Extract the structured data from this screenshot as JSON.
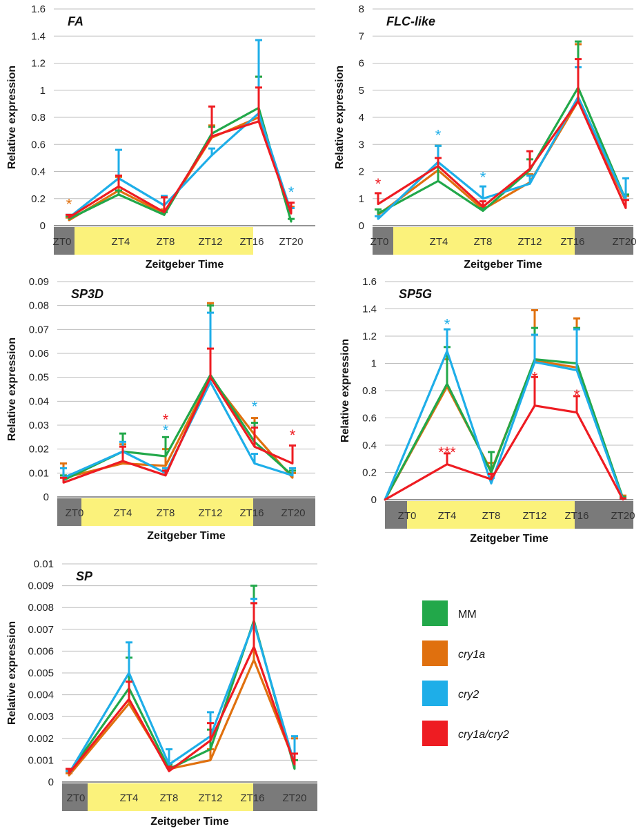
{
  "colors": {
    "MM": "#22a84a",
    "cry1a": "#e0700e",
    "cry2": "#1eaee8",
    "cry1a/cry2": "#ee1c22",
    "day": "#fbf27b",
    "night": "#7a7a7a",
    "grid": "#bdbdbd"
  },
  "legend": [
    {
      "label": "MM",
      "series": "MM"
    },
    {
      "label": "cry1a",
      "series": "cry1a"
    },
    {
      "label": "cry2",
      "series": "cry2"
    },
    {
      "label": "cry1a/cry2",
      "series": "cry1a/cry2"
    }
  ],
  "chart_data": [
    {
      "type": "line",
      "title": "FA",
      "xlabel": "Zeitgeber Time",
      "ylabel": "Relative expression",
      "ylim": [
        0,
        1.6
      ],
      "yticks": [
        "0",
        "0.2",
        "0.4",
        "0.6",
        "0.8",
        "1",
        "1.2",
        "1.4",
        "1.6"
      ],
      "categories": [
        "ZT0",
        "ZT4",
        "ZT8",
        "ZT12",
        "ZT16",
        "ZT20"
      ],
      "series": [
        {
          "name": "MM",
          "values": [
            0.05,
            0.23,
            0.08,
            0.68,
            0.87,
            0.03
          ],
          "errors": [
            0.02,
            0.03,
            0.02,
            0.05,
            0.23,
            0.02
          ]
        },
        {
          "name": "cry1a",
          "values": [
            0.04,
            0.26,
            0.09,
            0.65,
            0.8,
            0.1
          ],
          "errors": [
            0.02,
            0.1,
            0.03,
            0.09,
            0.3,
            0.04
          ]
        },
        {
          "name": "cry2",
          "values": [
            0.06,
            0.35,
            0.15,
            0.52,
            0.83,
            0.1
          ],
          "errors": [
            0.02,
            0.21,
            0.07,
            0.05,
            0.54,
            0.03
          ]
        },
        {
          "name": "cry1a/cry2",
          "values": [
            0.06,
            0.29,
            0.1,
            0.66,
            0.77,
            0.09
          ],
          "errors": [
            0.02,
            0.08,
            0.11,
            0.22,
            0.25,
            0.08
          ]
        }
      ],
      "annotations": [
        {
          "text": "*",
          "series": "cry1a",
          "x": "ZT0",
          "y": 0.17
        },
        {
          "text": "*",
          "series": "cry2",
          "x": "ZT20",
          "y": 0.26
        }
      ]
    },
    {
      "type": "line",
      "title": "FLC-like",
      "xlabel": "Zeitgeber Time",
      "ylabel": "Relative expression",
      "ylim": [
        0,
        8
      ],
      "yticks": [
        "0",
        "1",
        "2",
        "3",
        "4",
        "5",
        "6",
        "7",
        "8"
      ],
      "categories": [
        "ZT0",
        "ZT4",
        "ZT8",
        "ZT12",
        "ZT16",
        "ZT20"
      ],
      "series": [
        {
          "name": "MM",
          "values": [
            0.45,
            1.65,
            0.55,
            2.05,
            5.1,
            0.95
          ],
          "errors": [
            0.15,
            1.3,
            0.1,
            0.4,
            1.7,
            0.2
          ]
        },
        {
          "name": "cry1a",
          "values": [
            0.4,
            2.05,
            0.6,
            1.6,
            4.6,
            0.9
          ],
          "errors": [
            0.2,
            0.9,
            0.1,
            0.3,
            2.1,
            0.2
          ]
        },
        {
          "name": "cry2",
          "values": [
            0.25,
            2.35,
            1.0,
            1.55,
            4.75,
            0.95
          ],
          "errors": [
            0.1,
            0.6,
            0.45,
            0.3,
            1.1,
            0.8
          ]
        },
        {
          "name": "cry1a/cry2",
          "values": [
            0.8,
            2.2,
            0.7,
            2.1,
            4.6,
            0.65
          ],
          "errors": [
            0.4,
            0.3,
            0.2,
            0.65,
            1.55,
            0.3
          ]
        }
      ],
      "annotations": [
        {
          "text": "*",
          "series": "cry1a/cry2",
          "x": "ZT0",
          "y": 1.6
        },
        {
          "text": "*",
          "series": "cry2",
          "x": "ZT4",
          "y": 3.4
        },
        {
          "text": "*",
          "series": "cry2",
          "x": "ZT8",
          "y": 1.85
        }
      ]
    },
    {
      "type": "line",
      "title": "SP3D",
      "xlabel": "Zeitgeber Time",
      "ylabel": "Relative expression",
      "ylim": [
        0,
        0.09
      ],
      "yticks": [
        "0",
        "0.01",
        "0.02",
        "0.03",
        "0.04",
        "0.05",
        "0.06",
        "0.07",
        "0.08",
        "0.09"
      ],
      "categories": [
        "ZT0",
        "ZT4",
        "ZT8",
        "ZT12",
        "ZT16",
        "ZT20"
      ],
      "series": [
        {
          "name": "MM",
          "values": [
            0.007,
            0.019,
            0.017,
            0.051,
            0.023,
            0.009
          ],
          "errors": [
            0.002,
            0.0075,
            0.008,
            0.029,
            0.008,
            0.002
          ]
        },
        {
          "name": "cry1a",
          "values": [
            0.008,
            0.014,
            0.013,
            0.05,
            0.026,
            0.008
          ],
          "errors": [
            0.006,
            0.008,
            0.007,
            0.031,
            0.007,
            0.002
          ]
        },
        {
          "name": "cry2",
          "values": [
            0.008,
            0.019,
            0.01,
            0.048,
            0.014,
            0.009
          ],
          "errors": [
            0.004,
            0.004,
            0.002,
            0.029,
            0.004,
            0.003
          ]
        },
        {
          "name": "cry1a/cry2",
          "values": [
            0.006,
            0.015,
            0.009,
            0.05,
            0.021,
            0.014
          ],
          "errors": [
            0.002,
            0.006,
            0.002,
            0.012,
            0.008,
            0.0075
          ]
        }
      ],
      "annotations": [
        {
          "text": "*",
          "series": "cry1a/cry2",
          "x": "ZT8",
          "y": 0.033
        },
        {
          "text": "*",
          "series": "cry2",
          "x": "ZT8",
          "y": 0.0285
        },
        {
          "text": "*",
          "series": "cry2",
          "x": "ZT16",
          "y": 0.0385
        },
        {
          "text": "*",
          "series": "cry1a/cry2",
          "x": "ZT20",
          "y": 0.0265
        }
      ]
    },
    {
      "type": "line",
      "title": "SP5G",
      "xlabel": "Zeitgeber Time",
      "ylabel": "Relative expression",
      "ylim": [
        0,
        1.6
      ],
      "yticks": [
        "0",
        "0.2",
        "0.4",
        "0.6",
        "0.8",
        "1",
        "1.2",
        "1.4",
        "1.6"
      ],
      "categories": [
        "ZT0",
        "ZT4",
        "ZT8",
        "ZT12",
        "ZT16",
        "ZT20"
      ],
      "series": [
        {
          "name": "MM",
          "values": [
            0.0,
            0.85,
            0.2,
            1.03,
            1.0,
            0.01
          ],
          "errors": [
            0.0,
            0.27,
            0.15,
            0.23,
            0.26,
            0.01
          ]
        },
        {
          "name": "cry1a",
          "values": [
            0.0,
            0.83,
            0.21,
            1.02,
            0.97,
            0.01
          ],
          "errors": [
            0.0,
            0.2,
            0.06,
            0.37,
            0.36,
            0.02
          ]
        },
        {
          "name": "cry2",
          "values": [
            0.0,
            1.09,
            0.12,
            1.01,
            0.95,
            0.0
          ],
          "errors": [
            0.0,
            0.16,
            0.04,
            0.2,
            0.3,
            0.01
          ]
        },
        {
          "name": "cry1a/cry2",
          "values": [
            0.0,
            0.26,
            0.15,
            0.69,
            0.64,
            0.0
          ],
          "errors": [
            0.0,
            0.08,
            0.04,
            0.21,
            0.12,
            0.01
          ]
        }
      ],
      "annotations": [
        {
          "text": "*",
          "series": "cry2",
          "x": "ZT4",
          "y": 1.3
        },
        {
          "text": "***",
          "series": "cry1a/cry2",
          "x": "ZT4",
          "y": 0.36
        },
        {
          "text": "*",
          "series": "cry1a/cry2",
          "x": "ZT12",
          "y": 0.91
        },
        {
          "text": "*",
          "series": "cry1a/cry2",
          "x": "ZT16",
          "y": 0.78
        }
      ]
    },
    {
      "type": "line",
      "title": "SP",
      "xlabel": "Zeitgeber Time",
      "ylabel": "Relative expression",
      "ylim": [
        0,
        0.01
      ],
      "yticks": [
        "0",
        "0.001",
        "0.002",
        "0.003",
        "0.004",
        "0.005",
        "0.006",
        "0.007",
        "0.008",
        "0.009",
        "0.01"
      ],
      "categories": [
        "ZT0",
        "ZT4",
        "ZT8",
        "ZT12",
        "ZT16",
        "ZT20"
      ],
      "series": [
        {
          "name": "MM",
          "values": [
            0.0004,
            0.0043,
            0.0006,
            0.0015,
            0.0074,
            0.0006
          ],
          "errors": [
            0.0001,
            0.0014,
            0.0002,
            0.0009,
            0.0016,
            0.0004
          ]
        },
        {
          "name": "cry1a",
          "values": [
            0.0003,
            0.0036,
            0.0006,
            0.001,
            0.0056,
            0.0009
          ],
          "errors": [
            0.0001,
            0.001,
            0.0002,
            0.0005,
            0.0026,
            0.0011
          ]
        },
        {
          "name": "cry2",
          "values": [
            0.0004,
            0.005,
            0.0008,
            0.0021,
            0.0073,
            0.0008
          ],
          "errors": [
            0.0001,
            0.0014,
            0.0007,
            0.0011,
            0.0011,
            0.0013
          ]
        },
        {
          "name": "cry1a/cry2",
          "values": [
            0.0004,
            0.0038,
            0.0005,
            0.0019,
            0.0062,
            0.0008
          ],
          "errors": [
            0.0002,
            0.0008,
            0.0002,
            0.0008,
            0.002,
            0.0005
          ]
        }
      ]
    }
  ]
}
